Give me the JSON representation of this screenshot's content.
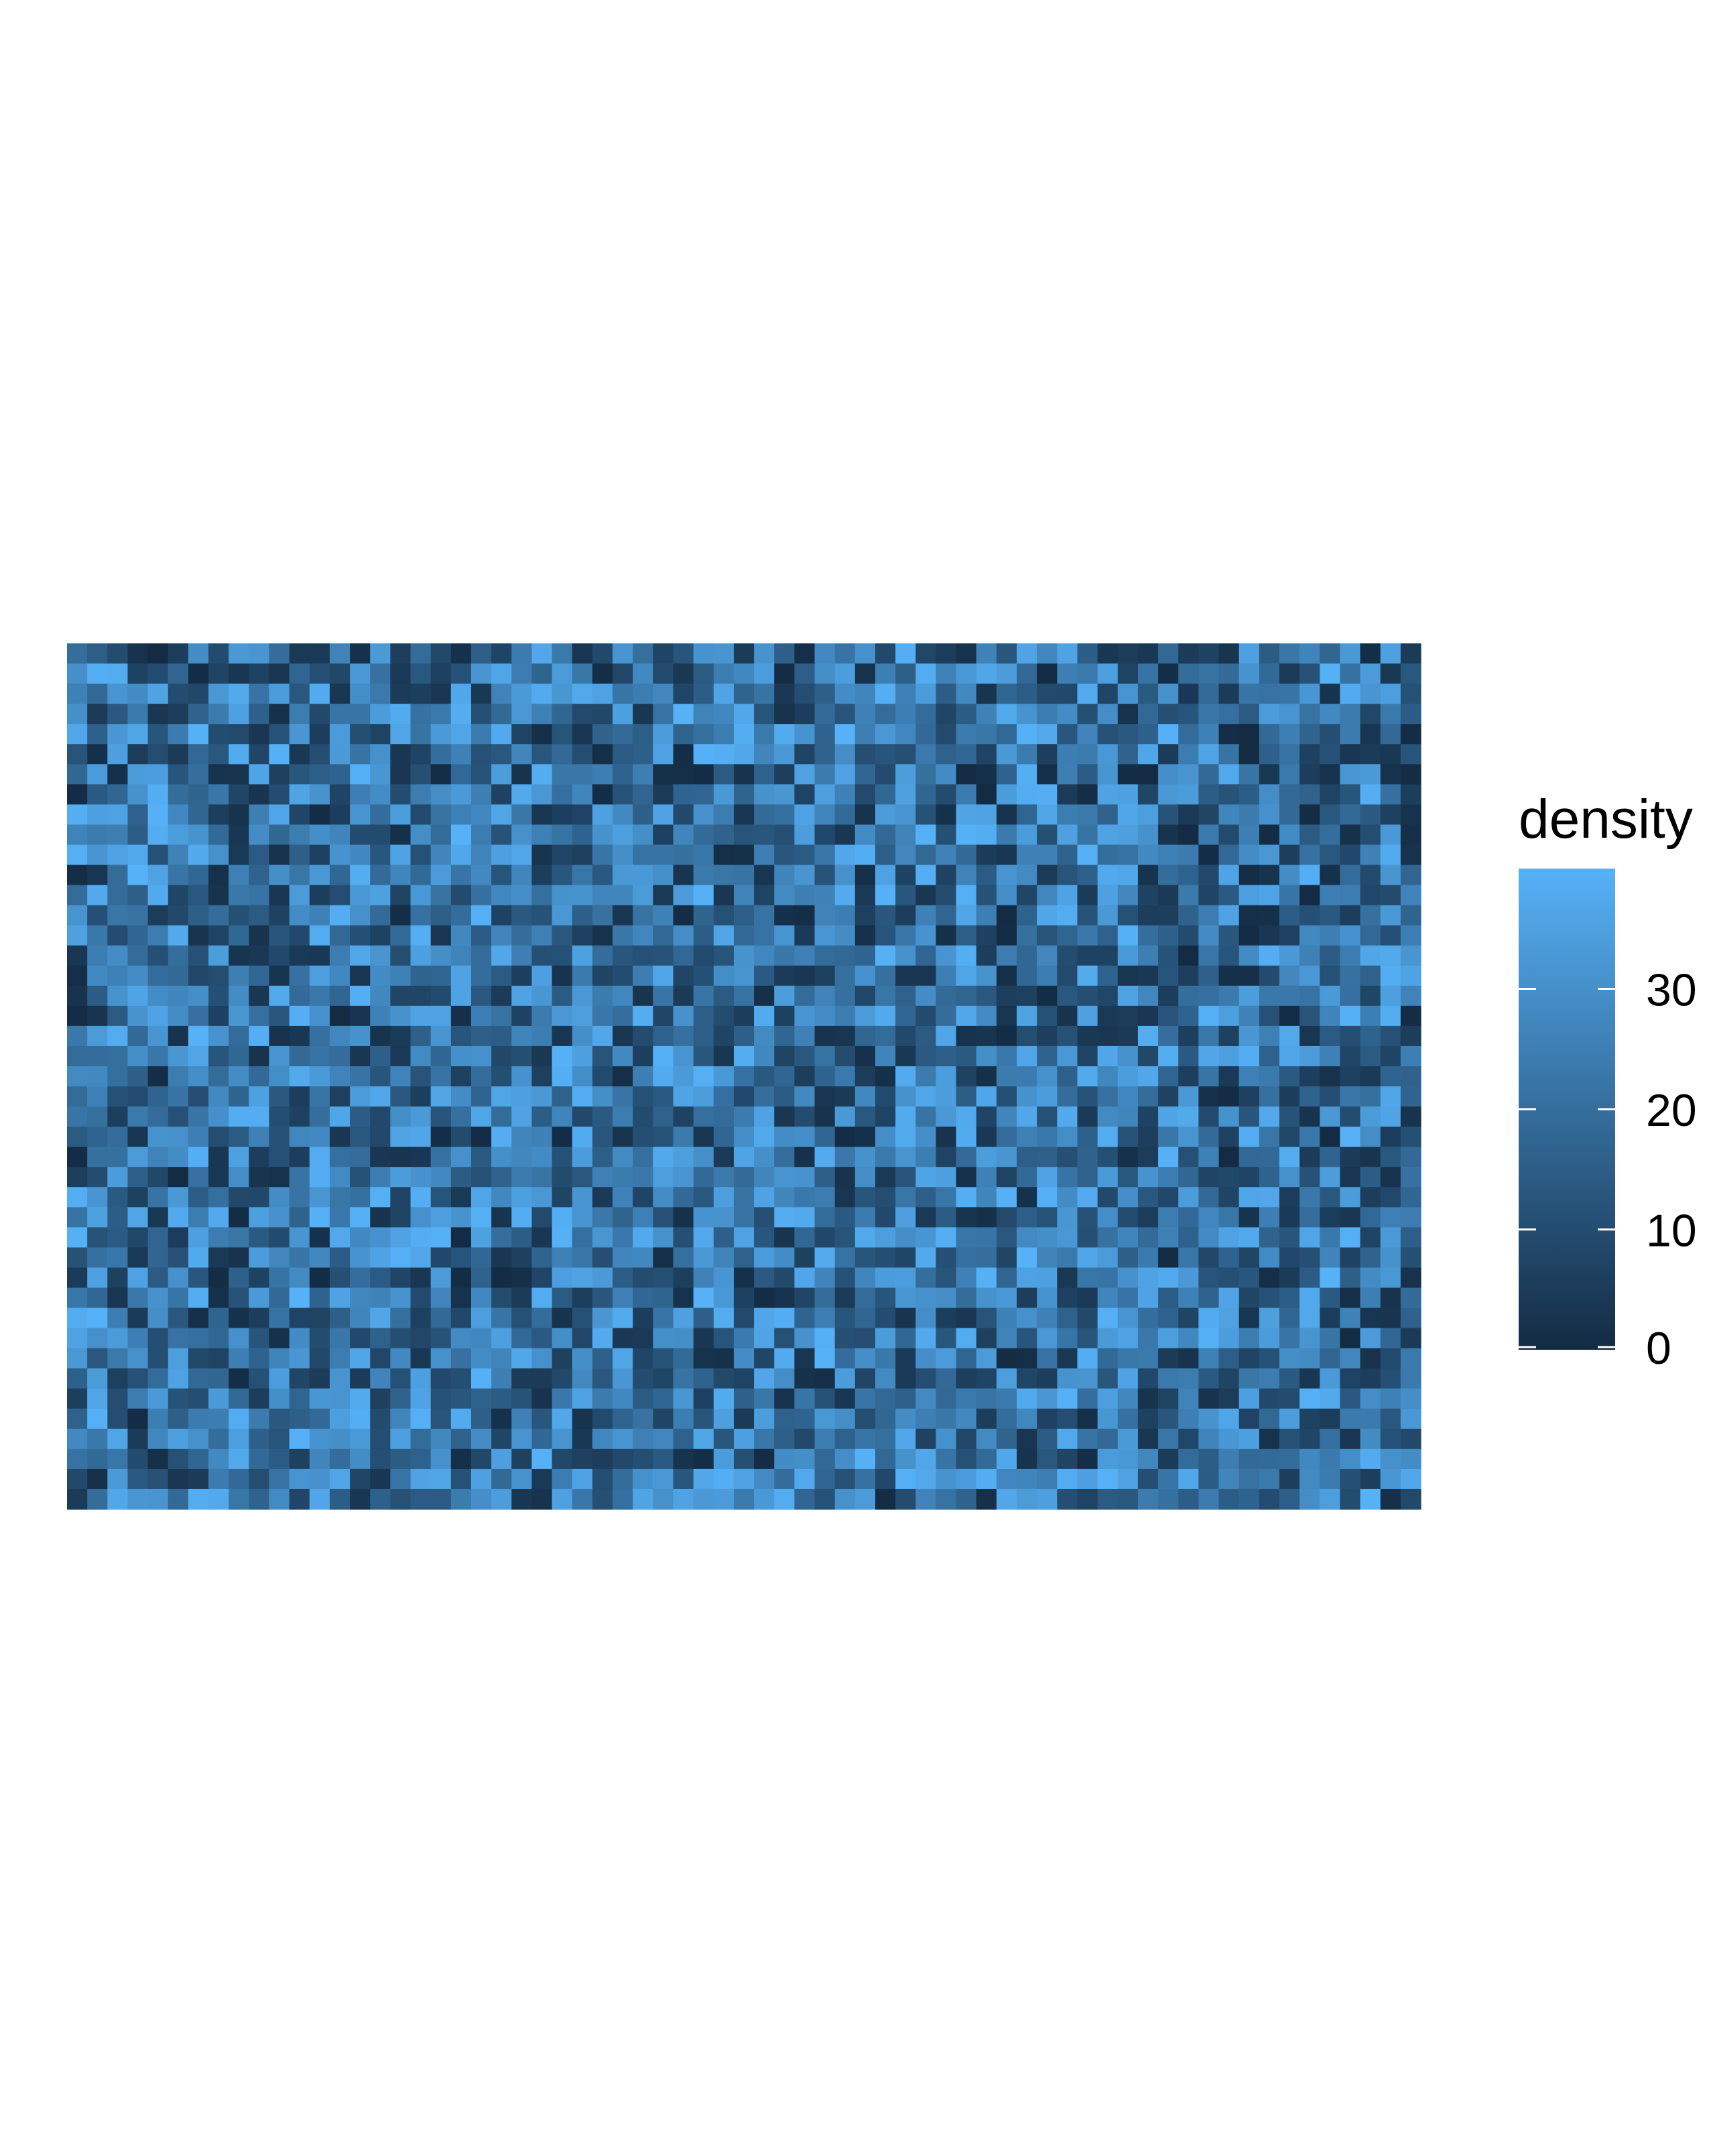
{
  "chart_data": {
    "type": "heatmap",
    "title": "",
    "xlabel": "",
    "ylabel": "",
    "grid": false,
    "axes_visible": false,
    "n_cols": 67,
    "n_rows": 43,
    "value_range": [
      0,
      40
    ],
    "generation": "noise-pattern",
    "seed": 20240517,
    "legend": {
      "title": "density",
      "position": "right",
      "ticks": [
        0,
        10,
        20,
        30
      ],
      "tick_labels": [
        "0",
        "10",
        "20",
        "30"
      ],
      "low_color": "#132B43",
      "high_color": "#56B1F7"
    }
  }
}
